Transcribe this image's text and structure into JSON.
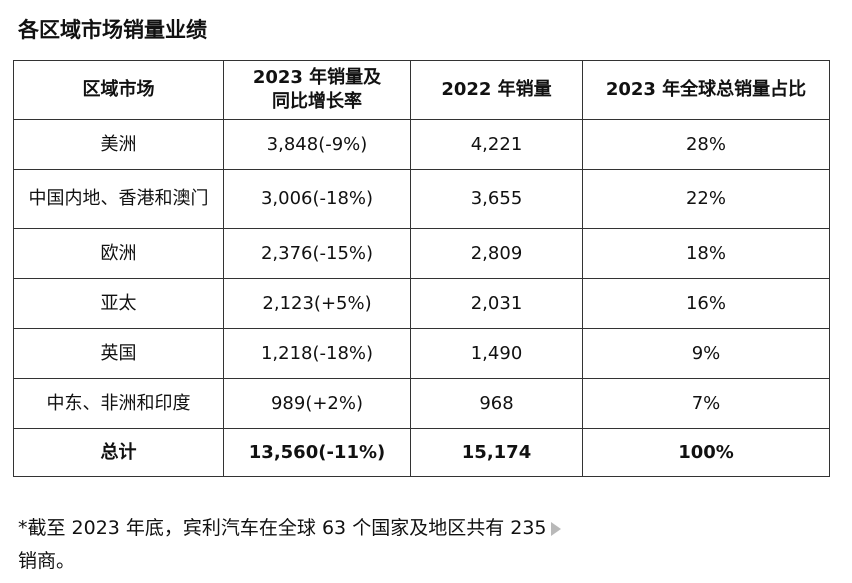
{
  "title": "各区域市场销量业绩",
  "table": {
    "headers": {
      "region": "区域市场",
      "sales2023_line1": "2023 年销量及",
      "sales2023_line2": "同比增长率",
      "sales2022": "2022 年销量",
      "share2023": "2023 年全球总销量占比"
    },
    "rows": [
      {
        "region": "美洲",
        "sales2023": "3,848(-9%)",
        "sales2022": "4,221",
        "share": "28%"
      },
      {
        "region": "中国内地、香港和澳门",
        "sales2023": "3,006(-18%)",
        "sales2022": "3,655",
        "share": "22%"
      },
      {
        "region": "欧洲",
        "sales2023": "2,376(-15%)",
        "sales2022": "2,809",
        "share": "18%"
      },
      {
        "region": "亚太",
        "sales2023": "2,123(+5%)",
        "sales2022": "2,031",
        "share": "16%"
      },
      {
        "region": "英国",
        "sales2023": "1,218(-18%)",
        "sales2022": "1,490",
        "share": "9%"
      },
      {
        "region": "中东、非洲和印度",
        "sales2023": "989(+2%)",
        "sales2022": "968",
        "share": "7%"
      }
    ],
    "total": {
      "region": "总计",
      "sales2023": "13,560(-11%)",
      "sales2022": "15,174",
      "share": "100%"
    }
  },
  "footnote": {
    "line1": "*截至 2023 年底，宾利汽车在全球 63 个国家及地区共有 235",
    "line2": "销商。",
    "icon": "play-arrow-icon"
  },
  "colors": {
    "border": "#333333",
    "text": "#111111",
    "icon": "#b9b9b9"
  }
}
